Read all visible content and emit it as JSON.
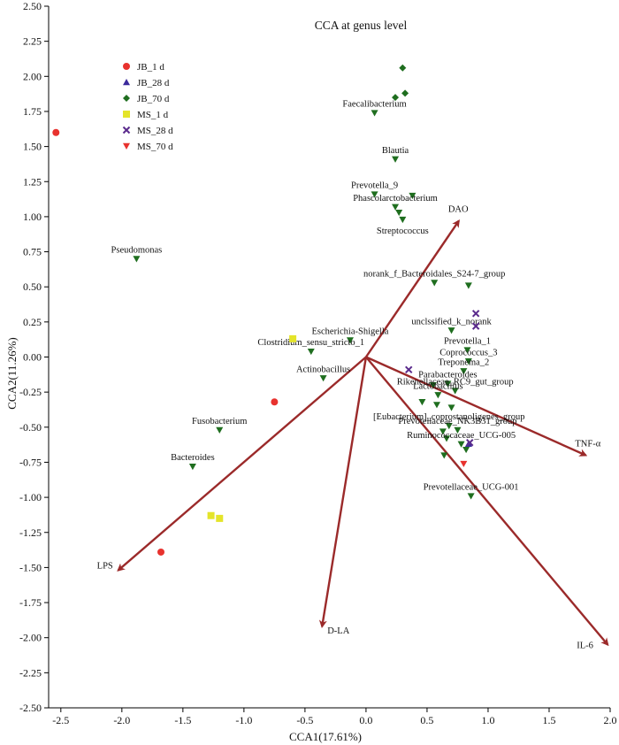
{
  "chart_data": {
    "type": "scatter",
    "title": "CCA at genus level",
    "xlabel": "CCA1(17.61%)",
    "ylabel": "CCA2(11.26%)",
    "xlim": [
      -2.6,
      2.0
    ],
    "ylim": [
      -2.5,
      2.5
    ],
    "xticks": [
      "-2.5",
      "-2.0",
      "-1.5",
      "-1.0",
      "-0.5",
      "0.0",
      "0.5",
      "1.0",
      "1.5",
      "2.0"
    ],
    "xtick_values": [
      -2.5,
      -2.0,
      -1.5,
      -1.0,
      -0.5,
      0.0,
      0.5,
      1.0,
      1.5,
      2.0
    ],
    "yticks": [
      "-2.50",
      "-2.25",
      "-2.00",
      "-1.75",
      "-1.50",
      "-1.25",
      "-1.00",
      "-0.75",
      "-0.50",
      "-0.25",
      "0.00",
      "0.25",
      "0.50",
      "0.75",
      "1.00",
      "1.25",
      "1.50",
      "1.75",
      "2.00",
      "2.25",
      "2.50"
    ],
    "ytick_values": [
      -2.5,
      -2.25,
      -2.0,
      -1.75,
      -1.5,
      -1.25,
      -1.0,
      -0.75,
      -0.5,
      -0.25,
      0.0,
      0.25,
      0.5,
      0.75,
      1.0,
      1.25,
      1.5,
      1.75,
      2.0,
      2.25,
      2.5
    ],
    "legend_position": "top-left",
    "series": [
      {
        "name": "JB_1 d",
        "marker": "circle",
        "color": "#e8322e",
        "points": [
          [
            -2.54,
            1.6
          ],
          [
            -0.75,
            -0.32
          ],
          [
            -1.68,
            -1.39
          ]
        ]
      },
      {
        "name": "JB_28 d",
        "marker": "triangle-up",
        "color": "#3b2a9c",
        "points": [
          [
            0.84,
            -0.62
          ]
        ]
      },
      {
        "name": "JB_70 d",
        "marker": "diamond",
        "color": "#1f6e1f",
        "points": [
          [
            0.3,
            2.06
          ],
          [
            0.32,
            1.88
          ],
          [
            0.24,
            1.85
          ]
        ]
      },
      {
        "name": "MS_1 d",
        "marker": "square",
        "color": "#e4e42a",
        "points": [
          [
            -0.6,
            0.13
          ],
          [
            -1.27,
            -1.13
          ],
          [
            -1.2,
            -1.15
          ]
        ]
      },
      {
        "name": "MS_28 d",
        "marker": "x",
        "color": "#5a2a8c",
        "points": [
          [
            0.9,
            0.31
          ],
          [
            0.9,
            0.22
          ],
          [
            0.35,
            -0.09
          ],
          [
            0.85,
            -0.61
          ]
        ]
      },
      {
        "name": "MS_70 d",
        "marker": "triangle-down",
        "color": "#e8322e",
        "points": [
          [
            0.8,
            -0.76
          ]
        ]
      }
    ],
    "species": {
      "marker": "triangle-down",
      "color": "#1f6e1f",
      "points": [
        {
          "label": "Faecalibacterium",
          "x": 0.07,
          "y": 1.74,
          "label_side": "above"
        },
        {
          "label": "Blautia",
          "x": 0.24,
          "y": 1.41,
          "label_side": "above"
        },
        {
          "label": "Prevotella_9",
          "x": 0.07,
          "y": 1.16,
          "label_side": "above"
        },
        {
          "label": "",
          "x": 0.38,
          "y": 1.15
        },
        {
          "label": "Phascolarctobacterium",
          "x": 0.24,
          "y": 1.07,
          "label_side": "above"
        },
        {
          "label": "",
          "x": 0.27,
          "y": 1.03
        },
        {
          "label": "Streptococcus",
          "x": 0.3,
          "y": 0.98,
          "label_side": "below"
        },
        {
          "label": "Pseudomonas",
          "x": -1.88,
          "y": 0.7,
          "label_side": "above"
        },
        {
          "label": "norank_f_Bacteroidales_S24-7_group",
          "x": 0.56,
          "y": 0.53,
          "label_side": "above"
        },
        {
          "label": "",
          "x": 0.84,
          "y": 0.51
        },
        {
          "label": "unclssified_k_norank",
          "x": 0.7,
          "y": 0.19,
          "label_side": "above"
        },
        {
          "label": "Escherichia-Shigella",
          "x": -0.13,
          "y": 0.12,
          "label_side": "above"
        },
        {
          "label": "Clostridium_sensu_stricto_1",
          "x": -0.45,
          "y": 0.04,
          "label_side": "above"
        },
        {
          "label": "Prevotella_1",
          "x": 0.83,
          "y": 0.05,
          "label_side": "above"
        },
        {
          "label": "Coprococcus_3",
          "x": 0.84,
          "y": -0.03,
          "label_side": "above"
        },
        {
          "label": "Treponema_2",
          "x": 0.8,
          "y": -0.1,
          "label_side": "above"
        },
        {
          "label": "Actinobacillus",
          "x": -0.35,
          "y": -0.15,
          "label_side": "above"
        },
        {
          "label": "Parabacteroides",
          "x": 0.67,
          "y": -0.19,
          "label_side": "above"
        },
        {
          "label": "",
          "x": 0.55,
          "y": -0.2
        },
        {
          "label": "Rikenellaceae_RC9_gut_group",
          "x": 0.73,
          "y": -0.24,
          "label_side": "above"
        },
        {
          "label": "Lactobacillus",
          "x": 0.59,
          "y": -0.27,
          "label_side": "above"
        },
        {
          "label": "",
          "x": 0.46,
          "y": -0.32
        },
        {
          "label": "",
          "x": 0.58,
          "y": -0.34
        },
        {
          "label": "",
          "x": 0.7,
          "y": -0.36
        },
        {
          "label": "[Eubacterium]_coprostanoligenes_group",
          "x": 0.68,
          "y": -0.49,
          "label_side": "above"
        },
        {
          "label": "",
          "x": 0.63,
          "y": -0.53
        },
        {
          "label": "Prevotellaceae_NK3B31_group",
          "x": 0.75,
          "y": -0.52,
          "label_side": "above"
        },
        {
          "label": "",
          "x": 0.66,
          "y": -0.58
        },
        {
          "label": "Ruminococcaceae_UCG-005",
          "x": 0.78,
          "y": -0.62,
          "label_side": "above"
        },
        {
          "label": "",
          "x": 0.82,
          "y": -0.66
        },
        {
          "label": "",
          "x": 0.64,
          "y": -0.7
        },
        {
          "label": "Fusobacterium",
          "x": -1.2,
          "y": -0.52,
          "label_side": "above"
        },
        {
          "label": "Bacteroides",
          "x": -1.42,
          "y": -0.78,
          "label_side": "above"
        },
        {
          "label": "Prevotellaceae_UCG-001",
          "x": 0.86,
          "y": -0.99,
          "label_side": "above"
        }
      ]
    },
    "arrows": {
      "color": "#9b2a2a",
      "vectors": [
        {
          "label": "DAO",
          "x": 0.76,
          "y": 0.97,
          "label_pos": "top"
        },
        {
          "label": "TNF-α",
          "x": 1.8,
          "y": -0.7,
          "label_pos": "top"
        },
        {
          "label": "IL-6",
          "x": 1.98,
          "y": -2.05,
          "label_pos": "below-left"
        },
        {
          "label": "D-LA",
          "x": -0.36,
          "y": -1.92,
          "label_pos": "right"
        },
        {
          "label": "LPS",
          "x": -2.03,
          "y": -1.52,
          "label_pos": "left"
        }
      ]
    }
  }
}
